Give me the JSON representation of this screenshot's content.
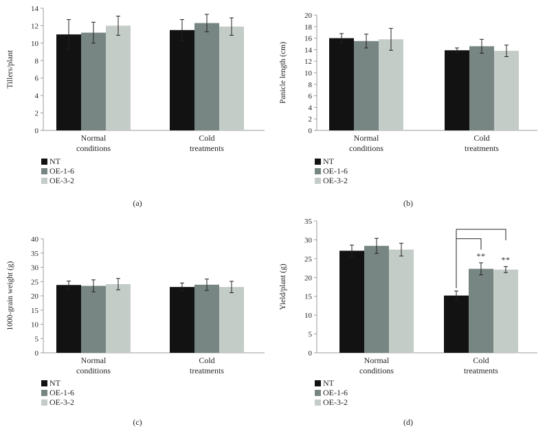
{
  "colors": {
    "NT": "#121212",
    "OE-1-6": "#778683",
    "OE-3-2": "#c4ccc8",
    "axis": "#9a9a9a",
    "err": "#231f20"
  },
  "chart_data": [
    {
      "panel": "(a)",
      "type": "bar",
      "ylabel": "Tillers/plant",
      "ylim": [
        0,
        14
      ],
      "yticks": [
        0,
        2,
        4,
        6,
        8,
        10,
        12,
        14
      ],
      "categories": [
        [
          "Normal",
          "conditions"
        ],
        [
          "Cold",
          "treatments"
        ]
      ],
      "series": [
        {
          "name": "NT",
          "values": [
            11.0,
            11.5
          ],
          "errors": [
            1.7,
            1.2
          ]
        },
        {
          "name": "OE-1-6",
          "values": [
            11.2,
            12.3
          ],
          "errors": [
            1.2,
            1.0
          ]
        },
        {
          "name": "OE-3-2",
          "values": [
            12.0,
            11.9
          ],
          "errors": [
            1.1,
            1.0
          ]
        }
      ],
      "annotations": []
    },
    {
      "panel": "(b)",
      "type": "bar",
      "ylabel": "Panicle length (cm)",
      "ylim": [
        0,
        20
      ],
      "yticks": [
        0,
        2,
        4,
        6,
        8,
        10,
        12,
        14,
        16,
        18,
        20
      ],
      "categories": [
        [
          "Normal",
          "conditions"
        ],
        [
          "Cold",
          "treatments"
        ]
      ],
      "series": [
        {
          "name": "NT",
          "values": [
            16.0,
            13.9
          ],
          "errors": [
            0.8,
            0.4
          ]
        },
        {
          "name": "OE-1-6",
          "values": [
            15.5,
            14.6
          ],
          "errors": [
            1.2,
            1.2
          ]
        },
        {
          "name": "OE-3-2",
          "values": [
            15.8,
            13.8
          ],
          "errors": [
            1.9,
            1.0
          ]
        }
      ],
      "annotations": []
    },
    {
      "panel": "(c)",
      "type": "bar",
      "ylabel": "1000-grain weight (g)",
      "ylim": [
        0,
        40
      ],
      "yticks": [
        0,
        5,
        10,
        15,
        20,
        25,
        30,
        35,
        40
      ],
      "categories": [
        [
          "Normal",
          "conditions"
        ],
        [
          "Cold",
          "treatments"
        ]
      ],
      "series": [
        {
          "name": "NT",
          "values": [
            23.8,
            23.1
          ],
          "errors": [
            1.4,
            1.4
          ]
        },
        {
          "name": "OE-1-6",
          "values": [
            23.5,
            23.9
          ],
          "errors": [
            2.1,
            2.0
          ]
        },
        {
          "name": "OE-3-2",
          "values": [
            24.1,
            23.1
          ],
          "errors": [
            2.0,
            2.0
          ]
        }
      ],
      "annotations": []
    },
    {
      "panel": "(d)",
      "type": "bar",
      "ylabel": "Yield/plant (g)",
      "ylim": [
        0,
        35
      ],
      "yticks": [
        0,
        5,
        10,
        15,
        20,
        25,
        30,
        35
      ],
      "categories": [
        [
          "Normal",
          "conditions"
        ],
        [
          "Cold",
          "treatments"
        ]
      ],
      "series": [
        {
          "name": "NT",
          "values": [
            27.1,
            15.2
          ],
          "errors": [
            1.5,
            1.2
          ]
        },
        {
          "name": "OE-1-6",
          "values": [
            28.4,
            22.3
          ],
          "errors": [
            2.0,
            1.6
          ]
        },
        {
          "name": "OE-3-2",
          "values": [
            27.4,
            22.1
          ],
          "errors": [
            1.7,
            0.8
          ]
        }
      ],
      "annotations": [
        {
          "text": "**",
          "category": 1,
          "from": "NT",
          "to": "OE-1-6",
          "bracket_y": 30.3
        },
        {
          "text": "**",
          "category": 1,
          "from": "NT",
          "to": "OE-3-2",
          "bracket_y": 32.8
        }
      ]
    }
  ]
}
